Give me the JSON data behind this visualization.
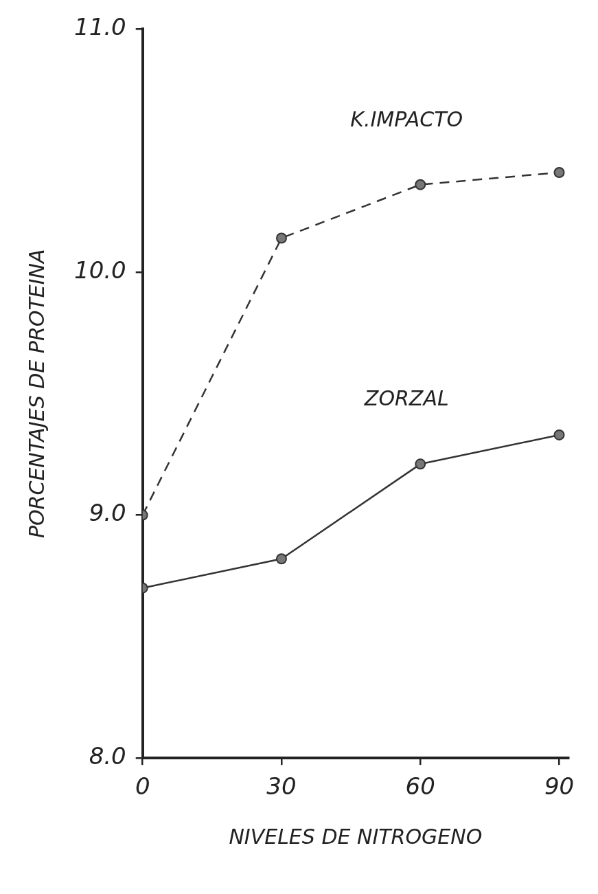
{
  "chart_data": {
    "type": "line",
    "xlabel": "NIVELES DE NITROGENO",
    "ylabel": "PORCENTAJES DE PROTEINA",
    "x": [
      0,
      30,
      60,
      90
    ],
    "series": [
      {
        "name": "K.IMPACTO",
        "color": "#333333",
        "values": [
          9.0,
          10.14,
          10.36,
          10.41
        ],
        "line_style": "dashed"
      },
      {
        "name": "ZORZAL",
        "color": "#333333",
        "values": [
          8.7,
          8.82,
          9.21,
          9.33
        ],
        "line_style": "solid"
      }
    ],
    "xlim": [
      0,
      92
    ],
    "xticks": [
      0,
      30,
      60,
      90
    ],
    "ylim": [
      8.0,
      11.0
    ],
    "yticks": [
      {
        "value": 8.0,
        "label": "8.0"
      },
      {
        "value": 9.0,
        "label": "9.0"
      },
      {
        "value": 10.0,
        "label": "10.0"
      },
      {
        "value": 11.0,
        "label": "11.0"
      }
    ],
    "grid": false,
    "legend": false,
    "marker": "circle"
  }
}
